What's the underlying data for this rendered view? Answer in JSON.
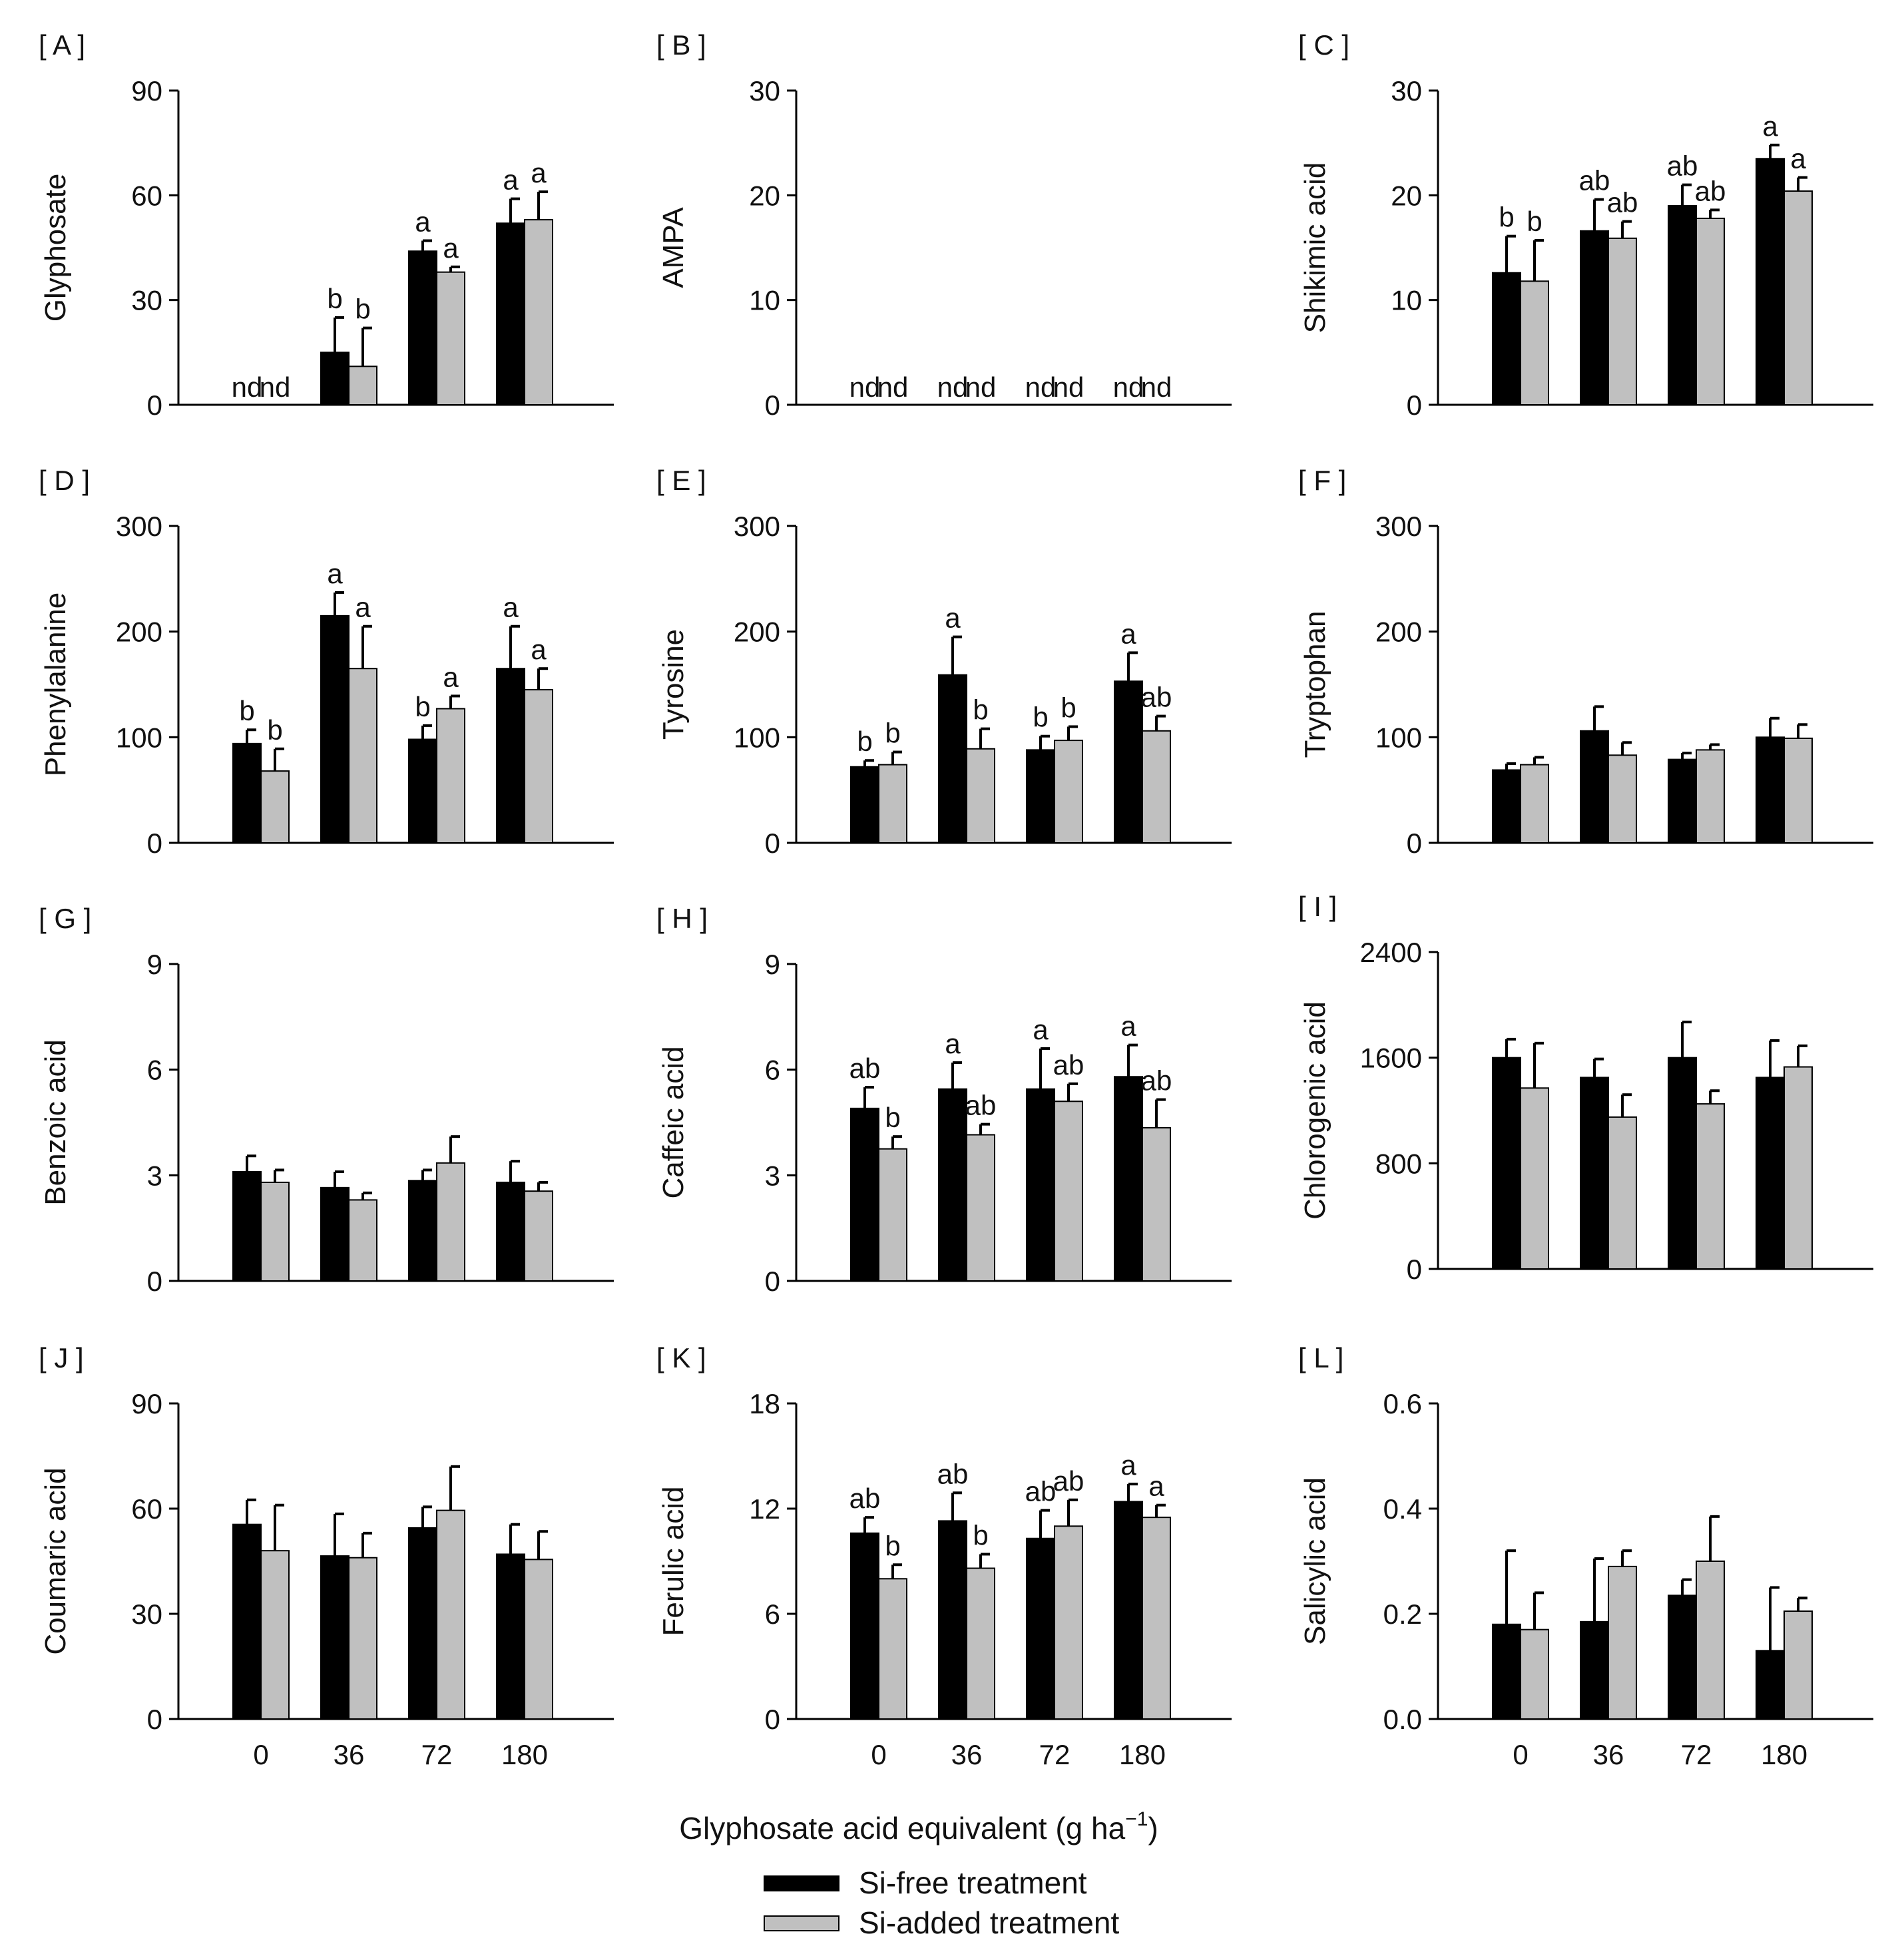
{
  "figure": {
    "xaxis_label_main": "Glyphosate acid equivalent (g ha",
    "xaxis_label_sup": "−1",
    "xaxis_label_close": ")",
    "legend": [
      {
        "label": "Si-free treatment",
        "color": "#000000"
      },
      {
        "label": "Si-added treatment",
        "color": "#c0c0c0"
      }
    ],
    "colors": {
      "si_free": "#000000",
      "si_added": "#c0c0c0",
      "axis": "#000000"
    }
  },
  "chart_data": [
    {
      "panel": "[ A ]",
      "type": "bar",
      "ylabel": "Glyphosate",
      "ylim": [
        0,
        90
      ],
      "yticks": [
        "0",
        "30",
        "60",
        "90"
      ],
      "categories": [
        "0",
        "36",
        "72",
        "180"
      ],
      "show_xticks": false,
      "series": [
        {
          "name": "Si-free treatment",
          "values": [
            0,
            15,
            44,
            52
          ],
          "errors": [
            0,
            10,
            3,
            7
          ],
          "letters": [
            "nd",
            "b",
            "a",
            "a"
          ]
        },
        {
          "name": "Si-added treatment",
          "values": [
            0,
            11,
            38,
            53
          ],
          "errors": [
            0,
            11,
            1.5,
            8
          ],
          "letters": [
            "nd",
            "b",
            "a",
            "a"
          ]
        }
      ]
    },
    {
      "panel": "[ B ]",
      "type": "bar",
      "ylabel": "AMPA",
      "ylim": [
        0,
        30
      ],
      "yticks": [
        "0",
        "10",
        "20",
        "30"
      ],
      "categories": [
        "0",
        "36",
        "72",
        "180"
      ],
      "show_xticks": false,
      "series": [
        {
          "name": "Si-free treatment",
          "values": [
            0,
            0,
            0,
            0
          ],
          "errors": [
            0,
            0,
            0,
            0
          ],
          "letters": [
            "nd",
            "nd",
            "nd",
            "nd"
          ]
        },
        {
          "name": "Si-added treatment",
          "values": [
            0,
            0,
            0,
            0
          ],
          "errors": [
            0,
            0,
            0,
            0
          ],
          "letters": [
            "nd",
            "nd",
            "nd",
            "nd"
          ]
        }
      ]
    },
    {
      "panel": "[ C ]",
      "type": "bar",
      "ylabel": "Shikimic acid",
      "ylim": [
        0,
        30
      ],
      "yticks": [
        "0",
        "10",
        "20",
        "30"
      ],
      "categories": [
        "0",
        "36",
        "72",
        "180"
      ],
      "show_xticks": false,
      "series": [
        {
          "name": "Si-free treatment",
          "values": [
            12.6,
            16.6,
            19,
            23.5
          ],
          "errors": [
            3.5,
            3,
            2,
            1.3
          ],
          "letters": [
            "b",
            "ab",
            "ab",
            "a"
          ]
        },
        {
          "name": "Si-added treatment",
          "values": [
            11.8,
            15.9,
            17.8,
            20.4
          ],
          "errors": [
            3.9,
            1.6,
            0.8,
            1.3
          ],
          "letters": [
            "b",
            "ab",
            "ab",
            "a"
          ]
        }
      ]
    },
    {
      "panel": "[ D ]",
      "type": "bar",
      "ylabel": "Phenylalanine",
      "ylim": [
        0,
        300
      ],
      "yticks": [
        "0",
        "100",
        "200",
        "300"
      ],
      "categories": [
        "0",
        "36",
        "72",
        "180"
      ],
      "show_xticks": false,
      "series": [
        {
          "name": "Si-free treatment",
          "values": [
            94,
            215,
            98,
            165
          ],
          "errors": [
            13,
            22,
            13,
            40
          ],
          "letters": [
            "b",
            "a",
            "b",
            "a"
          ]
        },
        {
          "name": "Si-added treatment",
          "values": [
            68,
            165,
            127,
            145
          ],
          "errors": [
            21,
            40,
            12,
            20
          ],
          "letters": [
            "b",
            "a",
            "a",
            "a"
          ]
        }
      ]
    },
    {
      "panel": "[ E ]",
      "type": "bar",
      "ylabel": "Tyrosine",
      "ylim": [
        0,
        300
      ],
      "yticks": [
        "0",
        "100",
        "200",
        "300"
      ],
      "categories": [
        "0",
        "36",
        "72",
        "180"
      ],
      "show_xticks": false,
      "series": [
        {
          "name": "Si-free treatment",
          "values": [
            72,
            159,
            88,
            153
          ],
          "errors": [
            6,
            36,
            13,
            27
          ],
          "letters": [
            "b",
            "a",
            "b",
            "a"
          ]
        },
        {
          "name": "Si-added treatment",
          "values": [
            74,
            89,
            97,
            106
          ],
          "errors": [
            12,
            19,
            13,
            14
          ],
          "letters": [
            "b",
            "b",
            "b",
            "ab"
          ]
        }
      ]
    },
    {
      "panel": "[ F ]",
      "type": "bar",
      "ylabel": "Tryptophan",
      "ylim": [
        0,
        300
      ],
      "yticks": [
        "0",
        "100",
        "200",
        "300"
      ],
      "categories": [
        "0",
        "36",
        "72",
        "180"
      ],
      "show_xticks": false,
      "series": [
        {
          "name": "Si-free treatment",
          "values": [
            69,
            106,
            79,
            100
          ],
          "errors": [
            6,
            23,
            6,
            18
          ],
          "letters": [
            "",
            "",
            "",
            ""
          ]
        },
        {
          "name": "Si-added treatment",
          "values": [
            74,
            83,
            88,
            99
          ],
          "errors": [
            7,
            12,
            5,
            13
          ],
          "letters": [
            "",
            "",
            "",
            ""
          ]
        }
      ]
    },
    {
      "panel": "[ G ]",
      "type": "bar",
      "ylabel": "Benzoic acid",
      "ylim": [
        0,
        9
      ],
      "yticks": [
        "0",
        "3",
        "6",
        "9"
      ],
      "categories": [
        "0",
        "36",
        "72",
        "180"
      ],
      "show_xticks": false,
      "series": [
        {
          "name": "Si-free treatment",
          "values": [
            3.1,
            2.65,
            2.85,
            2.8
          ],
          "errors": [
            0.45,
            0.45,
            0.3,
            0.6
          ],
          "letters": [
            "",
            "",
            "",
            ""
          ]
        },
        {
          "name": "Si-added treatment",
          "values": [
            2.8,
            2.3,
            3.35,
            2.55
          ],
          "errors": [
            0.35,
            0.2,
            0.75,
            0.25
          ],
          "letters": [
            "",
            "",
            "",
            ""
          ]
        }
      ]
    },
    {
      "panel": "[ H ]",
      "type": "bar",
      "ylabel": "Caffeic acid",
      "ylim": [
        0,
        9
      ],
      "yticks": [
        "0",
        "3",
        "6",
        "9"
      ],
      "categories": [
        "0",
        "36",
        "72",
        "180"
      ],
      "show_xticks": false,
      "series": [
        {
          "name": "Si-free treatment",
          "values": [
            4.9,
            5.45,
            5.45,
            5.8
          ],
          "errors": [
            0.6,
            0.75,
            1.15,
            0.9
          ],
          "letters": [
            "ab",
            "a",
            "a",
            "a"
          ]
        },
        {
          "name": "Si-added treatment",
          "values": [
            3.75,
            4.15,
            5.1,
            4.35
          ],
          "errors": [
            0.35,
            0.3,
            0.5,
            0.8
          ],
          "letters": [
            "b",
            "ab",
            "ab",
            "ab"
          ]
        }
      ]
    },
    {
      "panel": "[ I ]",
      "type": "bar",
      "ylabel": "Chlorogenic acid",
      "ylim": [
        0,
        2400
      ],
      "yticks": [
        "0",
        "800",
        "1600",
        "2400"
      ],
      "categories": [
        "0",
        "36",
        "72",
        "180"
      ],
      "show_xticks": false,
      "series": [
        {
          "name": "Si-free treatment",
          "values": [
            1600,
            1450,
            1600,
            1450
          ],
          "errors": [
            140,
            140,
            270,
            280
          ],
          "letters": [
            "",
            "",
            "",
            ""
          ]
        },
        {
          "name": "Si-added treatment",
          "values": [
            1370,
            1150,
            1250,
            1530
          ],
          "errors": [
            340,
            170,
            100,
            160
          ],
          "letters": [
            "",
            "",
            "",
            ""
          ]
        }
      ]
    },
    {
      "panel": "[ J ]",
      "type": "bar",
      "ylabel": "Coumaric acid",
      "ylim": [
        0,
        90
      ],
      "yticks": [
        "0",
        "30",
        "60",
        "90"
      ],
      "categories": [
        "0",
        "36",
        "72",
        "180"
      ],
      "show_xticks": true,
      "series": [
        {
          "name": "Si-free treatment",
          "values": [
            55.5,
            46.5,
            54.5,
            47
          ],
          "errors": [
            7,
            12,
            6,
            8.5
          ],
          "letters": [
            "",
            "",
            "",
            ""
          ]
        },
        {
          "name": "Si-added treatment",
          "values": [
            48,
            46,
            59.5,
            45.5
          ],
          "errors": [
            13,
            7,
            12.5,
            8
          ],
          "letters": [
            "",
            "",
            "",
            ""
          ]
        }
      ]
    },
    {
      "panel": "[ K ]",
      "type": "bar",
      "ylabel": "Ferulic acid",
      "ylim": [
        0,
        18
      ],
      "yticks": [
        "0",
        "6",
        "12",
        "18"
      ],
      "categories": [
        "0",
        "36",
        "72",
        "180"
      ],
      "show_xticks": true,
      "series": [
        {
          "name": "Si-free treatment",
          "values": [
            10.6,
            11.3,
            10.3,
            12.4
          ],
          "errors": [
            0.9,
            1.6,
            1.6,
            1.0
          ],
          "letters": [
            "ab",
            "ab",
            "ab",
            "a"
          ]
        },
        {
          "name": "Si-added treatment",
          "values": [
            8,
            8.6,
            11,
            11.5
          ],
          "errors": [
            0.8,
            0.8,
            1.5,
            0.7
          ],
          "letters": [
            "b",
            "b",
            "ab",
            "a"
          ]
        }
      ]
    },
    {
      "panel": "[ L ]",
      "type": "bar",
      "ylabel": "Salicylic acid",
      "ylim": [
        0,
        0.6
      ],
      "yticks": [
        "0.0",
        "0.2",
        "0.4",
        "0.6"
      ],
      "categories": [
        "0",
        "36",
        "72",
        "180"
      ],
      "show_xticks": true,
      "series": [
        {
          "name": "Si-free treatment",
          "values": [
            0.18,
            0.185,
            0.235,
            0.13
          ],
          "errors": [
            0.14,
            0.12,
            0.03,
            0.12
          ],
          "letters": [
            "",
            "",
            "",
            ""
          ]
        },
        {
          "name": "Si-added treatment",
          "values": [
            0.17,
            0.29,
            0.3,
            0.205
          ],
          "errors": [
            0.07,
            0.03,
            0.085,
            0.025
          ],
          "letters": [
            "",
            "",
            "",
            ""
          ]
        }
      ]
    }
  ]
}
